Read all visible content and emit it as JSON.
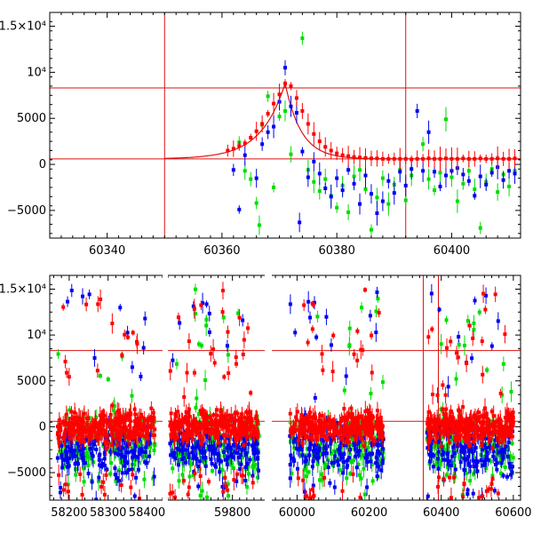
{
  "chart_data": [
    {
      "type": "scatter",
      "panel": "top",
      "grid": false,
      "legend": "none",
      "xlim": [
        60330,
        60412
      ],
      "ylim": [
        -8000,
        16500
      ],
      "x_ticks": [
        60340,
        60360,
        60380,
        60400
      ],
      "x_tick_labels": [
        "60340",
        "60360",
        "60380",
        "60400"
      ],
      "y_ticks": [
        -5000,
        0,
        5000,
        10000,
        15000
      ],
      "y_tick_labels": [
        "−5000",
        "0",
        "5000",
        "10⁴",
        "1.5×10⁴"
      ],
      "hlines": [
        {
          "y": 8300,
          "color": "#dd1111"
        },
        {
          "y": 600,
          "color": "#dd1111"
        }
      ],
      "vlines": [
        {
          "x": 60350,
          "color": "#dd1111"
        },
        {
          "x": 60392,
          "color": "#dd1111"
        }
      ],
      "model_curve": {
        "color": "#dd1111",
        "baseline": 600,
        "peak_x": 60371,
        "peak_y": 8800,
        "rise_scale": 4.2,
        "decay_scale": 2.8
      },
      "series": [
        {
          "color": "#ff0000",
          "points": [
            [
              60361,
              1500
            ],
            [
              60362,
              1700
            ],
            [
              60363,
              2000
            ],
            [
              60364,
              2300
            ],
            [
              60365,
              2900
            ],
            [
              60366,
              3600
            ],
            [
              60367,
              4400
            ],
            [
              60368,
              5500
            ],
            [
              60369,
              6600
            ],
            [
              60370,
              7600
            ],
            [
              60371,
              8800
            ],
            [
              60372,
              8500
            ],
            [
              60373,
              7200
            ],
            [
              60374,
              5800
            ],
            [
              60375,
              4400
            ],
            [
              60376,
              3300
            ],
            [
              60377,
              2500
            ],
            [
              60378,
              1900
            ],
            [
              60379,
              1500
            ],
            [
              60380,
              1200
            ],
            [
              60381,
              1000
            ],
            [
              60382,
              900
            ],
            [
              60383,
              800
            ],
            [
              60384,
              750
            ],
            [
              60385,
              700
            ],
            [
              60386,
              650
            ],
            [
              60387,
              650
            ],
            [
              60388,
              600
            ],
            [
              60389,
              600
            ],
            [
              60390,
              600
            ],
            [
              60391,
              600
            ],
            [
              60392,
              600
            ],
            [
              60393,
              550
            ],
            [
              60394,
              600
            ],
            [
              60395,
              600
            ],
            [
              60396,
              650
            ],
            [
              60397,
              600
            ],
            [
              60398,
              600
            ],
            [
              60399,
              650
            ],
            [
              60400,
              600
            ],
            [
              60401,
              600
            ],
            [
              60402,
              650
            ],
            [
              60403,
              600
            ],
            [
              60404,
              600
            ],
            [
              60405,
              650
            ],
            [
              60406,
              600
            ],
            [
              60407,
              600
            ],
            [
              60408,
              650
            ],
            [
              60409,
              600
            ],
            [
              60410,
              600
            ],
            [
              60411,
              650
            ]
          ]
        },
        {
          "color": "#0000ee",
          "points": [
            [
              60362,
              -600
            ],
            [
              60363,
              -4900
            ],
            [
              60364,
              1000
            ],
            [
              60366,
              -1500
            ],
            [
              60367,
              2200
            ],
            [
              60368,
              3500
            ],
            [
              60369,
              4100
            ],
            [
              60370,
              6800
            ],
            [
              60371,
              10500
            ],
            [
              60372,
              6300
            ],
            [
              60373,
              5600
            ],
            [
              60373.5,
              -6300
            ],
            [
              60374,
              1400
            ],
            [
              60375,
              -1400
            ],
            [
              60376,
              300
            ],
            [
              60377,
              -1000
            ],
            [
              60378,
              -2600
            ],
            [
              60379,
              -3500
            ],
            [
              60380,
              -1500
            ],
            [
              60381,
              -2800
            ],
            [
              60382,
              -600
            ],
            [
              60383,
              -2100
            ],
            [
              60384,
              -4300
            ],
            [
              60385,
              -1200
            ],
            [
              60386,
              -3200
            ],
            [
              60387,
              -5300
            ],
            [
              60388,
              -4000
            ],
            [
              60389,
              -1800
            ],
            [
              60390,
              -3100
            ],
            [
              60391,
              -800
            ],
            [
              60392,
              -2300
            ],
            [
              60393,
              -500
            ],
            [
              60394,
              5800
            ],
            [
              60395,
              -700
            ],
            [
              60396,
              3500
            ],
            [
              60397,
              -800
            ],
            [
              60398,
              -2400
            ],
            [
              60399,
              -1200
            ],
            [
              60400,
              -700
            ],
            [
              60401,
              -400
            ],
            [
              60402,
              -1100
            ],
            [
              60403,
              -1800
            ],
            [
              60404,
              -3400
            ],
            [
              60405,
              -1300
            ],
            [
              60406,
              -2200
            ],
            [
              60407,
              -900
            ],
            [
              60408,
              -300
            ],
            [
              60409,
              -1700
            ],
            [
              60410,
              -700
            ],
            [
              60411,
              -1000
            ]
          ]
        },
        {
          "color": "#00dd00",
          "points": [
            [
              60363,
              2400
            ],
            [
              60364,
              -700
            ],
            [
              60365,
              -1600
            ],
            [
              60366,
              -4200
            ],
            [
              60366.5,
              -6600
            ],
            [
              60367,
              4300
            ],
            [
              60368,
              7400
            ],
            [
              60369,
              -2500
            ],
            [
              60370,
              5200
            ],
            [
              60371,
              5800
            ],
            [
              60372,
              1100
            ],
            [
              60374,
              13700
            ],
            [
              60375,
              -600
            ],
            [
              60376,
              -1900
            ],
            [
              60377,
              -2900
            ],
            [
              60378,
              -1600
            ],
            [
              60379,
              -3400
            ],
            [
              60380,
              -4700
            ],
            [
              60381,
              -2300
            ],
            [
              60382,
              -5200
            ],
            [
              60383,
              -1300
            ],
            [
              60384,
              -600
            ],
            [
              60385,
              -2700
            ],
            [
              60386,
              -7100
            ],
            [
              60387,
              -3600
            ],
            [
              60388,
              -1500
            ],
            [
              60389,
              -4300
            ],
            [
              60390,
              -2200
            ],
            [
              60391,
              -600
            ],
            [
              60392,
              -3900
            ],
            [
              60393,
              -1200
            ],
            [
              60395,
              2200
            ],
            [
              60396,
              -1600
            ],
            [
              60397,
              -2800
            ],
            [
              60398,
              -900
            ],
            [
              60399,
              4900
            ],
            [
              60400,
              -1400
            ],
            [
              60401,
              -4000
            ],
            [
              60402,
              -2100
            ],
            [
              60403,
              -700
            ],
            [
              60404,
              -2700
            ],
            [
              60405,
              -6900
            ],
            [
              60406,
              -1900
            ],
            [
              60407,
              -500
            ],
            [
              60408,
              -3000
            ],
            [
              60409,
              -1100
            ],
            [
              60410,
              -2400
            ],
            [
              60411,
              -700
            ]
          ]
        }
      ]
    },
    {
      "type": "scatter",
      "panel": "bottom",
      "grid": false,
      "legend": "none",
      "broken_x_axis": true,
      "segments": [
        {
          "xlim": [
            58150,
            58440
          ],
          "x_ticks": [
            58200,
            58300,
            58400
          ],
          "x_tick_labels": [
            "58200",
            "58300",
            "58400"
          ],
          "data_x": [
            58170,
            58420
          ]
        },
        {
          "xlim": [
            59620,
            59890
          ],
          "x_ticks": [
            59800
          ],
          "x_tick_labels": [
            "59800"
          ],
          "data_x": [
            59625,
            59875
          ]
        },
        {
          "xlim": [
            59930,
            60620
          ],
          "x_ticks": [
            60000,
            60200,
            60400,
            60600
          ],
          "x_tick_labels": [
            "60000",
            "60200",
            "60400",
            "60600"
          ],
          "data_x": [
            [
              59980,
              60240
            ],
            [
              60360,
              60600
            ]
          ]
        }
      ],
      "ylim": [
        -8000,
        16500
      ],
      "y_ticks": [
        -5000,
        0,
        5000,
        10000,
        15000
      ],
      "y_tick_labels": [
        "−5000",
        "0",
        "5000",
        "10⁴",
        "1.5×10⁴"
      ],
      "hlines": [
        {
          "y": 8300,
          "color": "#dd1111"
        },
        {
          "y": 600,
          "color": "#dd1111"
        }
      ],
      "vlines": [
        {
          "x": 60350,
          "color": "#dd1111"
        },
        {
          "x": 60392,
          "color": "#dd1111"
        }
      ],
      "series_colors": [
        "#ff0000",
        "#0000ee",
        "#00dd00"
      ],
      "series_spread": {
        "red": [
          -2500,
          2500
        ],
        "blue": [
          -6500,
          1500
        ],
        "green": [
          -7000,
          3000
        ]
      }
    }
  ]
}
